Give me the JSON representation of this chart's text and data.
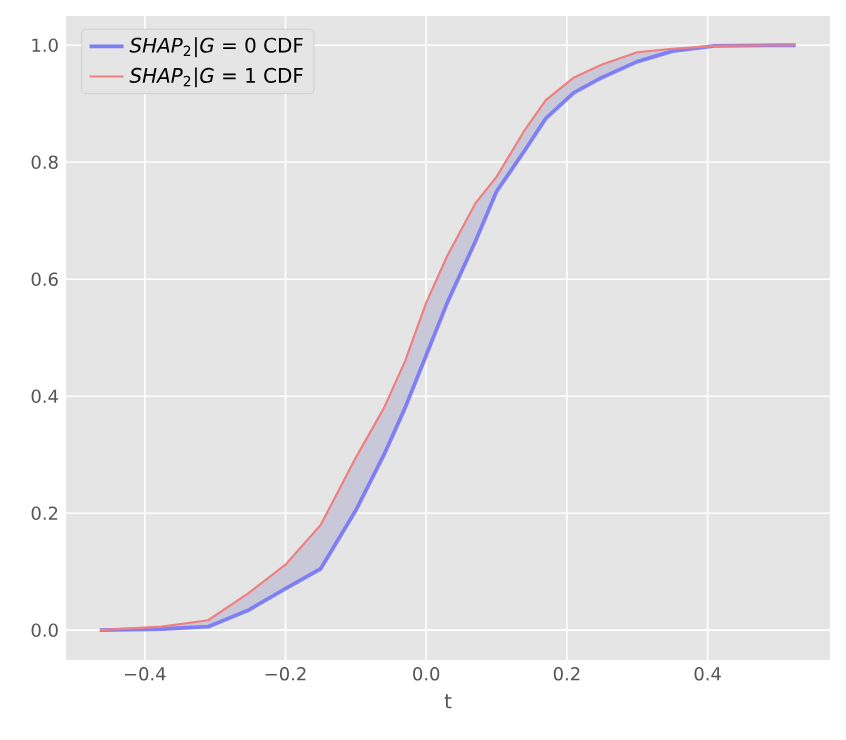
{
  "chart_data": {
    "type": "line",
    "xlabel": "t",
    "x": [
      -0.464,
      -0.376,
      -0.31,
      -0.253,
      -0.2,
      -0.15,
      -0.1,
      -0.06,
      -0.03,
      0,
      0.03,
      0.07,
      0.1,
      0.14,
      0.17,
      0.21,
      0.25,
      0.3,
      0.35,
      0.41,
      0.525
    ],
    "series": [
      {
        "name": "*SHAP*$_{2}$|*G* = 0 CDF",
        "color": "#7f7ff5",
        "values": [
          0,
          0.002,
          0.006,
          0.034,
          0.071,
          0.105,
          0.205,
          0.3,
          0.38,
          0.47,
          0.56,
          0.665,
          0.75,
          0.82,
          0.875,
          0.919,
          0.945,
          0.972,
          0.99,
          0.999,
          1.0
        ]
      },
      {
        "name": "*SHAP*$_{2}$|*G* = 1 CDF",
        "color": "#f08080",
        "values": [
          0,
          0.006,
          0.017,
          0.063,
          0.112,
          0.18,
          0.295,
          0.38,
          0.46,
          0.56,
          0.64,
          0.73,
          0.775,
          0.855,
          0.906,
          0.945,
          0.967,
          0.988,
          0.994,
          0.999,
          1.0
        ],
        "lower": [
          0,
          0.002,
          0.006,
          0.034,
          0.071,
          0.105,
          0.205,
          0.3,
          0.38,
          0.47,
          0.56,
          0.665,
          0.75,
          0.82,
          0.875,
          0.919,
          0.945,
          0.972,
          0.99,
          0.999,
          1.0
        ],
        "upper": [
          0,
          0.006,
          0.017,
          0.063,
          0.112,
          0.18,
          0.295,
          0.38,
          0.46,
          0.56,
          0.64,
          0.73,
          0.775,
          0.855,
          0.906,
          0.945,
          0.967,
          0.988,
          0.994,
          0.999,
          1.0
        ]
      }
    ],
    "xlim": [
      -0.512,
      0.574
    ],
    "ylim": [
      -0.051,
      1.05
    ],
    "xticks": [
      {
        "value": -0.4,
        "label": "−0.4"
      },
      {
        "value": -0.2,
        "label": "−0.2"
      },
      {
        "value": 0,
        "label": "0.0"
      },
      {
        "value": 0.2,
        "label": "0.2"
      },
      {
        "value": 0.4,
        "label": "0.4"
      }
    ],
    "yticks": [
      {
        "value": 0,
        "label": "0.0"
      },
      {
        "value": 0.2,
        "label": "0.2"
      },
      {
        "value": 0.4,
        "label": "0.4"
      },
      {
        "value": 0.6,
        "label": "0.6"
      },
      {
        "value": 0.8,
        "label": "0.8"
      },
      {
        "value": 1.0,
        "label": "1.0"
      }
    ],
    "grid": true,
    "legend": "top left"
  }
}
